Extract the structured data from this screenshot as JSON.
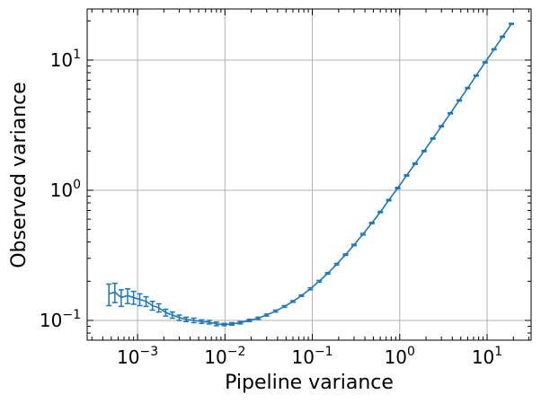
{
  "chart_data": {
    "type": "line",
    "xlabel": "Pipeline variance",
    "ylabel": "Observed variance",
    "xscale": "log",
    "yscale": "log",
    "grid": true,
    "x": [
      0.00047,
      0.00055,
      0.00065,
      0.00077,
      0.0009,
      0.00106,
      0.00125,
      0.00148,
      0.00175,
      0.0021,
      0.0025,
      0.003,
      0.0036,
      0.0044,
      0.0054,
      0.0066,
      0.008,
      0.0098,
      0.012,
      0.015,
      0.019,
      0.024,
      0.03,
      0.038,
      0.048,
      0.06,
      0.075,
      0.095,
      0.12,
      0.15,
      0.19,
      0.24,
      0.3,
      0.38,
      0.48,
      0.6,
      0.75,
      0.95,
      1.2,
      1.5,
      1.9,
      2.4,
      3,
      3.8,
      4.8,
      6,
      7.5,
      9.5,
      12,
      15,
      19
    ],
    "series": [
      {
        "color": "#1f77b4",
        "values": [
          0.16,
          0.165,
          0.15,
          0.155,
          0.15,
          0.145,
          0.14,
          0.13,
          0.125,
          0.115,
          0.11,
          0.105,
          0.102,
          0.1,
          0.098,
          0.097,
          0.094,
          0.093,
          0.094,
          0.096,
          0.1,
          0.104,
          0.11,
          0.118,
          0.128,
          0.14,
          0.155,
          0.175,
          0.2,
          0.23,
          0.27,
          0.32,
          0.38,
          0.46,
          0.56,
          0.68,
          0.84,
          1.04,
          1.3,
          1.6,
          2.0,
          2.5,
          3.1,
          3.9,
          4.9,
          6.1,
          7.6,
          9.6,
          12.1,
          15.1,
          19
        ],
        "errors": [
          0.03,
          0.028,
          0.022,
          0.02,
          0.017,
          0.015,
          0.012,
          0.01,
          0.009,
          0.007,
          0.006,
          0.005,
          0.004,
          0.004,
          0.003,
          0.003,
          0.003,
          0.002,
          0.002,
          0.002,
          0.002,
          0.002,
          0.002,
          0.002,
          0.002,
          0.002,
          0.002,
          0.003,
          0.003,
          0.003,
          0.004,
          0.004,
          0.005,
          0.006,
          0.007,
          0.008,
          0.01,
          0.012,
          0.015,
          0.018,
          0.022,
          0.027,
          0.033,
          0.04,
          0.05,
          0.06,
          0.075,
          0.09,
          0.11,
          0.14,
          0.17
        ]
      }
    ],
    "xlim": [
      0.000265,
      31.9
    ],
    "ylim": [
      0.0705,
      24.7
    ],
    "xticks": [
      {
        "value": 0.001,
        "label": "10",
        "exponent": "−3"
      },
      {
        "value": 0.01,
        "label": "10",
        "exponent": "−2"
      },
      {
        "value": 0.1,
        "label": "10",
        "exponent": "−1"
      },
      {
        "value": 1,
        "label": "10",
        "exponent": "0"
      },
      {
        "value": 10,
        "label": "10",
        "exponent": "1"
      }
    ],
    "yticks": [
      {
        "value": 0.1,
        "label": "10",
        "exponent": "−1"
      },
      {
        "value": 1,
        "label": "10",
        "exponent": "0"
      },
      {
        "value": 10,
        "label": "10",
        "exponent": "1"
      }
    ]
  }
}
